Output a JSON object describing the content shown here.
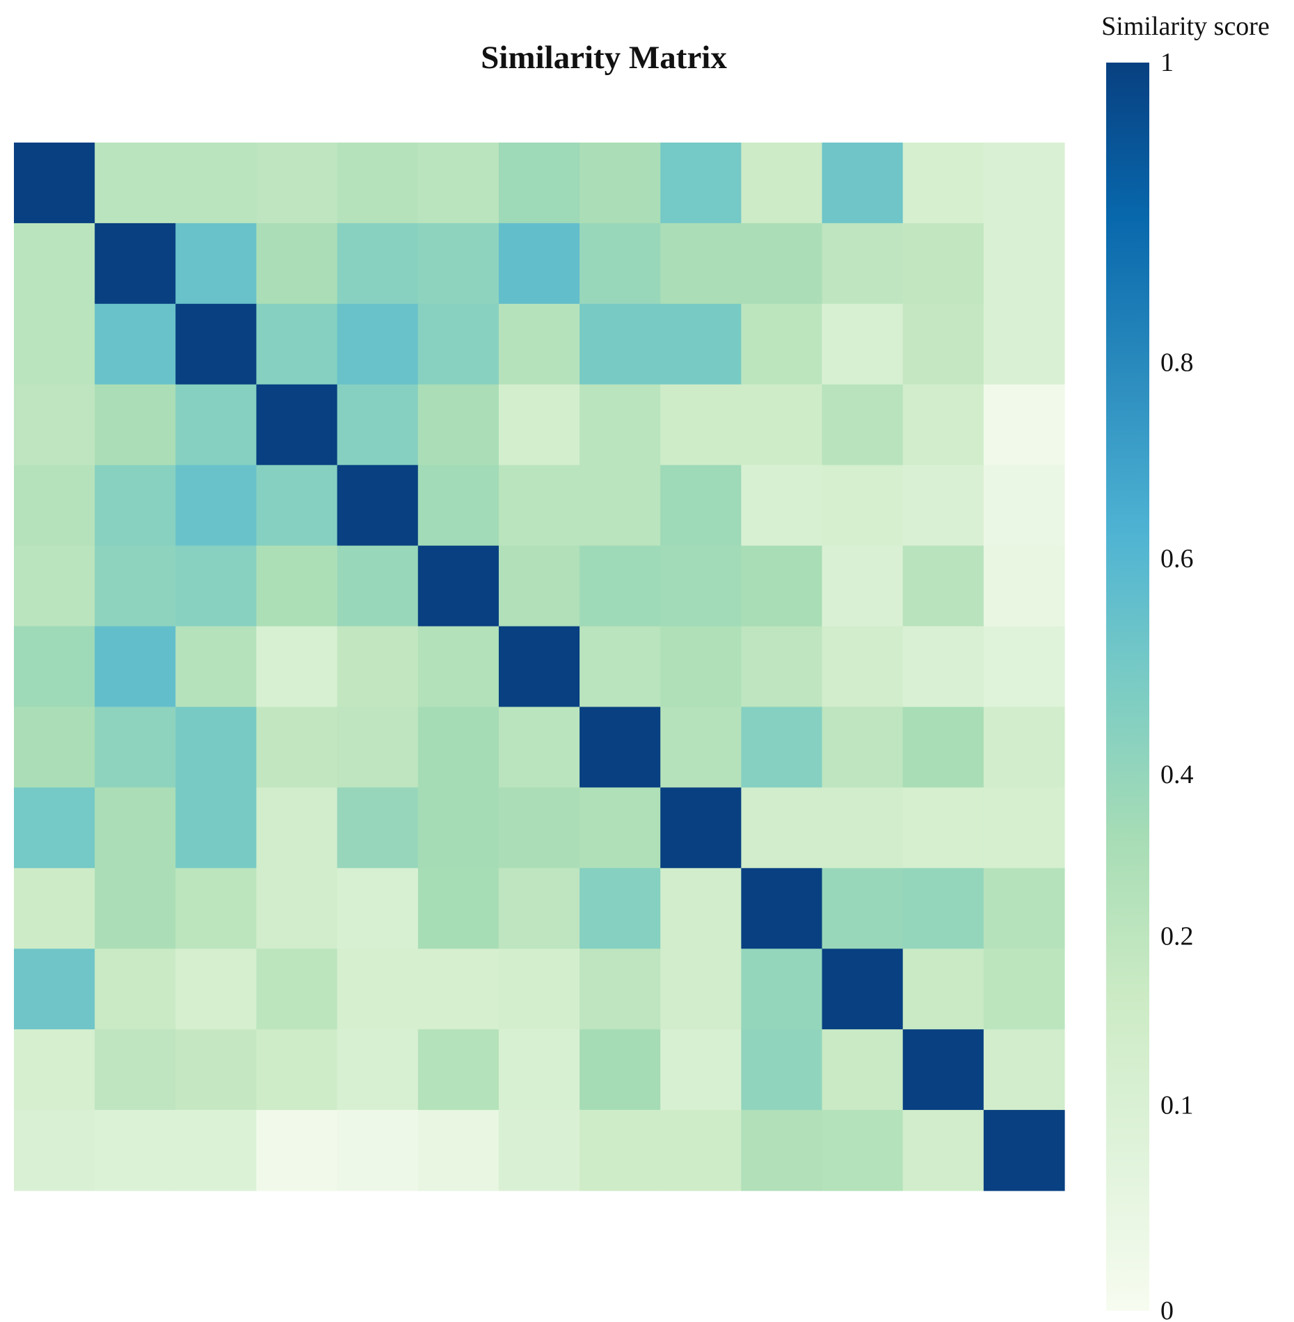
{
  "chart_data": {
    "type": "heatmap",
    "title": "Similarity Matrix",
    "xlabel": "",
    "ylabel": "",
    "colorbar": {
      "title": "Similarity score",
      "tick_labels": [
        "1",
        "0.8",
        "0.6",
        "0.4",
        "0.2",
        "0.1",
        "0"
      ],
      "range": [
        0,
        1
      ],
      "colors": [
        "#f7fcf0",
        "#e0f3db",
        "#ccebc5",
        "#a8ddb5",
        "#7bccc4",
        "#4eb3d3",
        "#2b8cbe",
        "#0868ac",
        "#084081"
      ]
    },
    "rows": 13,
    "cols": 13,
    "values": [
      [
        1.0,
        0.22,
        0.22,
        0.2,
        0.24,
        0.22,
        0.36,
        0.3,
        0.5,
        0.16,
        0.52,
        0.12,
        0.1
      ],
      [
        0.22,
        1.0,
        0.54,
        0.3,
        0.44,
        0.42,
        0.56,
        0.38,
        0.3,
        0.3,
        0.2,
        0.19,
        0.1
      ],
      [
        0.22,
        0.54,
        1.0,
        0.45,
        0.54,
        0.44,
        0.24,
        0.49,
        0.49,
        0.21,
        0.11,
        0.18,
        0.1
      ],
      [
        0.2,
        0.3,
        0.45,
        1.0,
        0.45,
        0.3,
        0.13,
        0.22,
        0.15,
        0.15,
        0.23,
        0.14,
        0.02
      ],
      [
        0.24,
        0.44,
        0.54,
        0.45,
        1.0,
        0.34,
        0.22,
        0.22,
        0.36,
        0.11,
        0.12,
        0.1,
        0.04
      ],
      [
        0.22,
        0.42,
        0.44,
        0.29,
        0.38,
        1.0,
        0.27,
        0.36,
        0.34,
        0.31,
        0.1,
        0.23,
        0.05
      ],
      [
        0.36,
        0.56,
        0.24,
        0.11,
        0.19,
        0.26,
        1.0,
        0.22,
        0.28,
        0.2,
        0.14,
        0.1,
        0.08
      ],
      [
        0.3,
        0.42,
        0.49,
        0.19,
        0.2,
        0.33,
        0.22,
        1.0,
        0.24,
        0.45,
        0.2,
        0.31,
        0.14
      ],
      [
        0.5,
        0.3,
        0.49,
        0.14,
        0.39,
        0.33,
        0.3,
        0.28,
        1.0,
        0.14,
        0.14,
        0.12,
        0.12
      ],
      [
        0.16,
        0.3,
        0.21,
        0.14,
        0.11,
        0.32,
        0.2,
        0.45,
        0.14,
        1.0,
        0.38,
        0.4,
        0.24
      ],
      [
        0.52,
        0.17,
        0.12,
        0.21,
        0.12,
        0.12,
        0.13,
        0.2,
        0.14,
        0.4,
        1.0,
        0.17,
        0.21
      ],
      [
        0.12,
        0.2,
        0.18,
        0.15,
        0.11,
        0.25,
        0.11,
        0.33,
        0.11,
        0.41,
        0.17,
        1.0,
        0.14
      ],
      [
        0.1,
        0.09,
        0.09,
        0.02,
        0.03,
        0.05,
        0.1,
        0.15,
        0.15,
        0.27,
        0.25,
        0.14,
        1.0
      ]
    ]
  }
}
